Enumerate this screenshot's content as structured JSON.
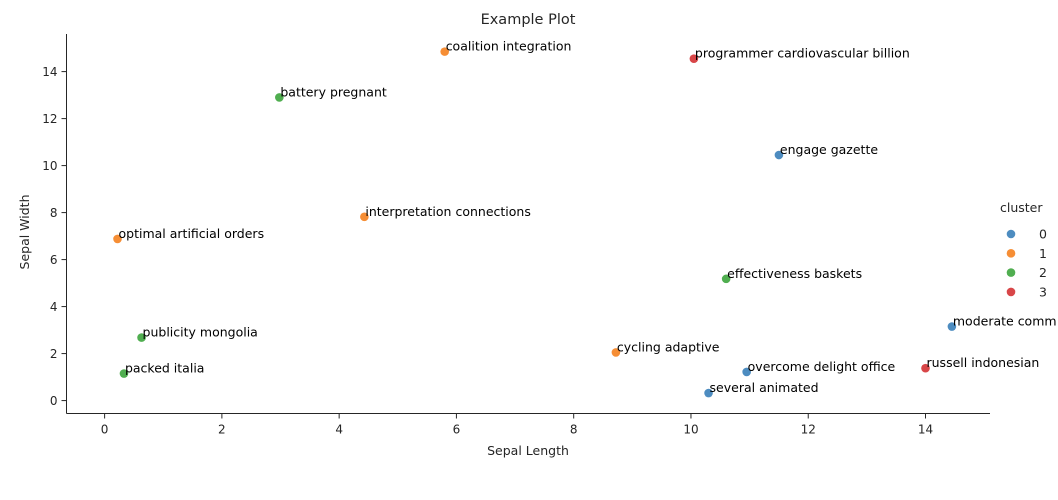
{
  "chart_data": {
    "type": "scatter",
    "title": "Example Plot",
    "xlabel": "Sepal Length",
    "ylabel": "Sepal Width",
    "xlim": [
      -0.65,
      15.1
    ],
    "ylim": [
      -0.55,
      15.6
    ],
    "xticks": [
      0,
      2,
      4,
      6,
      8,
      10,
      12,
      14
    ],
    "yticks": [
      0,
      2,
      4,
      6,
      8,
      10,
      12,
      14
    ],
    "grid": false,
    "legend": {
      "title": "cluster",
      "placement": "right",
      "entries": [
        {
          "label": "0",
          "color": "#3a80b9"
        },
        {
          "label": "1",
          "color": "#f5821f"
        },
        {
          "label": "2",
          "color": "#3da53d"
        },
        {
          "label": "3",
          "color": "#d43234"
        }
      ]
    },
    "points": [
      {
        "x": 5.8,
        "y": 14.85,
        "cluster": 1,
        "label": "coalition integration"
      },
      {
        "x": 10.05,
        "y": 14.55,
        "cluster": 3,
        "label": "programmer cardiovascular billion"
      },
      {
        "x": 2.98,
        "y": 12.9,
        "cluster": 2,
        "label": "battery pregnant"
      },
      {
        "x": 11.5,
        "y": 10.45,
        "cluster": 0,
        "label": "engage gazette"
      },
      {
        "x": 4.43,
        "y": 7.82,
        "cluster": 1,
        "label": "interpretation connections"
      },
      {
        "x": 0.22,
        "y": 6.88,
        "cluster": 1,
        "label": "optimal artificial orders"
      },
      {
        "x": 10.6,
        "y": 5.18,
        "cluster": 2,
        "label": "effectiveness baskets"
      },
      {
        "x": 14.45,
        "y": 3.15,
        "cluster": 0,
        "label": "moderate comm"
      },
      {
        "x": 0.63,
        "y": 2.68,
        "cluster": 2,
        "label": "publicity mongolia"
      },
      {
        "x": 8.72,
        "y": 2.05,
        "cluster": 1,
        "label": "cycling adaptive"
      },
      {
        "x": 10.95,
        "y": 1.22,
        "cluster": 0,
        "label": "overcome delight office"
      },
      {
        "x": 14.0,
        "y": 1.38,
        "cluster": 3,
        "label": "russell indonesian"
      },
      {
        "x": 0.33,
        "y": 1.15,
        "cluster": 2,
        "label": "packed italia"
      },
      {
        "x": 10.3,
        "y": 0.32,
        "cluster": 0,
        "label": "several animated"
      }
    ]
  }
}
